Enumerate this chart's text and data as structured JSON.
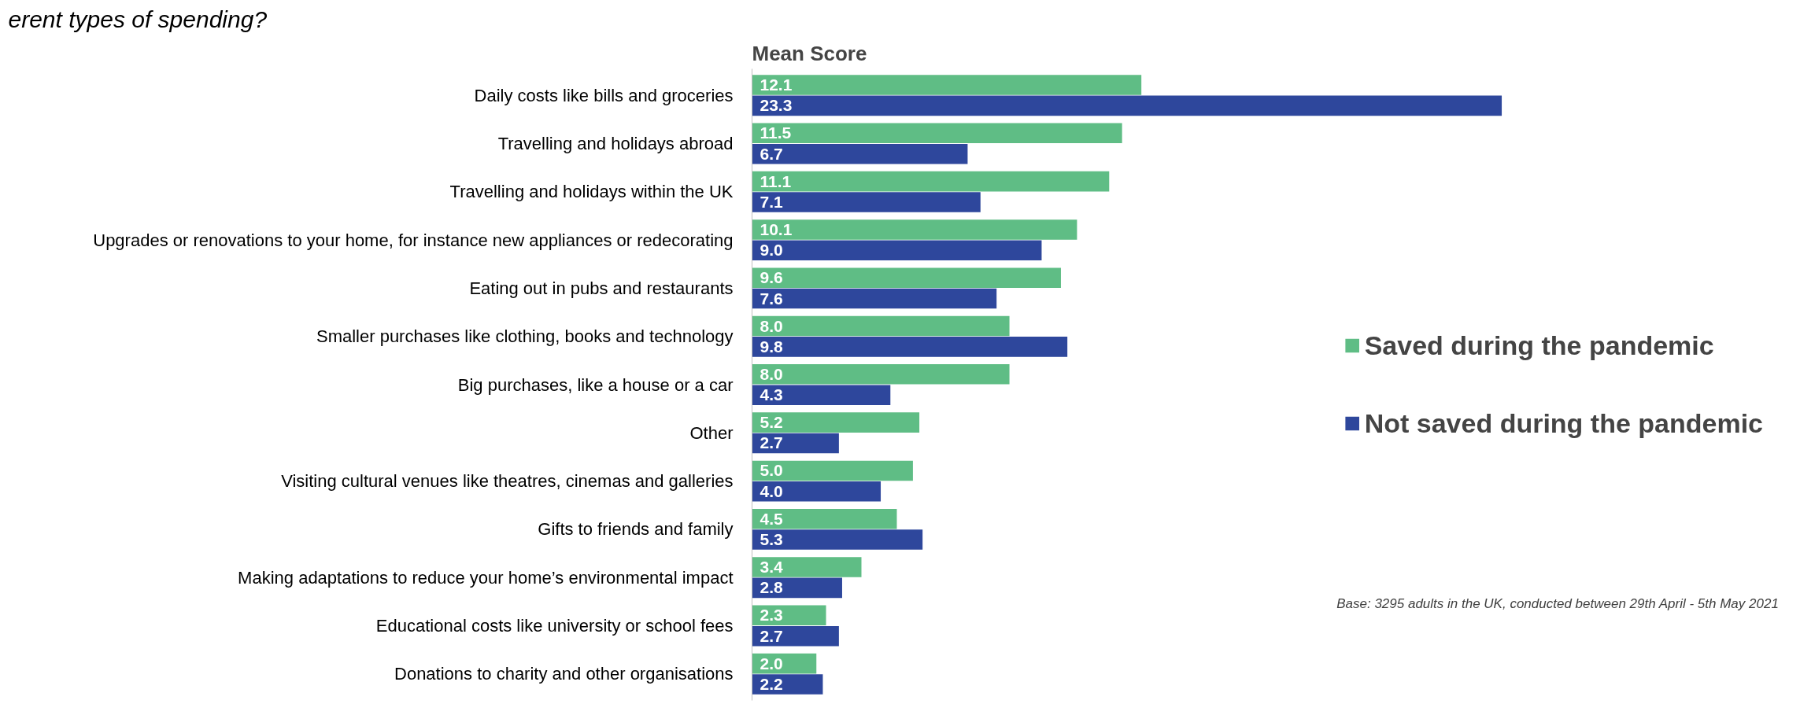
{
  "chart_data": {
    "type": "bar",
    "orientation": "horizontal",
    "title": "erent types of spending?",
    "xlabel": "Mean Score",
    "categories": [
      "Daily costs like bills and groceries",
      "Travelling and holidays abroad",
      "Travelling and holidays within the UK",
      "Upgrades or renovations to your home, for instance new appliances or redecorating",
      "Eating out in pubs and restaurants",
      "Smaller purchases like clothing, books and technology",
      "Big purchases, like a house or a car",
      "Other",
      "Visiting cultural venues like theatres, cinemas and galleries",
      "Gifts to friends and family",
      "Making adaptations to reduce your home’s environmental impact",
      "Educational costs like university or school fees",
      "Donations to charity and other organisations"
    ],
    "series": [
      {
        "name": "Saved during the pandemic",
        "color": "#5fbd85",
        "values": [
          12.1,
          11.5,
          11.1,
          10.1,
          9.6,
          8.0,
          8.0,
          5.2,
          5.0,
          4.5,
          3.4,
          2.3,
          2.0
        ],
        "value_labels": [
          "12.1",
          "11.5",
          "11.1",
          "10.1",
          "9.6",
          "8.0",
          "8.0",
          "5.2",
          "5.0",
          "4.5",
          "3.4",
          "2.3",
          "2.0"
        ]
      },
      {
        "name": "Not saved during the pandemic",
        "color": "#2e479c",
        "values": [
          23.3,
          6.7,
          7.1,
          9.0,
          7.6,
          9.8,
          4.3,
          2.7,
          4.0,
          5.3,
          2.8,
          2.7,
          2.2
        ],
        "value_labels": [
          "23.3",
          "6.7",
          "7.1",
          "9.0",
          "7.6",
          "9.8",
          "4.3",
          "2.7",
          "4.0",
          "5.3",
          "2.8",
          "2.7",
          "2.2"
        ]
      }
    ],
    "tick_labels": "y",
    "grid": false,
    "legend": "right",
    "annotations": [
      "Base: 3295 adults in the UK, conducted between 29th April - 5th May 2021"
    ]
  }
}
